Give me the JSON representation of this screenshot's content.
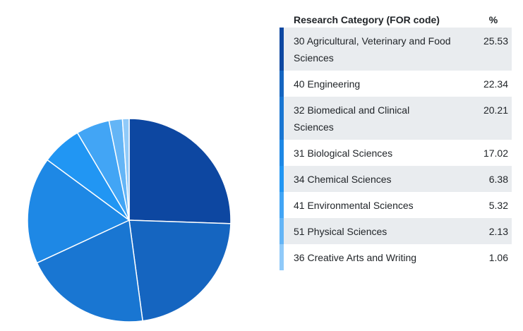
{
  "chart_data": {
    "type": "pie",
    "title": "",
    "start_angle": "top",
    "direction": "clockwise",
    "columns": [
      "Research Category (FOR code)",
      "%"
    ],
    "slices": [
      {
        "label": "30 Agricultural, Veterinary and Food Sciences",
        "value": 25.53,
        "color": "#0D47A1"
      },
      {
        "label": "40 Engineering",
        "value": 22.34,
        "color": "#1565C0"
      },
      {
        "label": "32 Biomedical and Clinical Sciences",
        "value": 20.21,
        "color": "#1976D2"
      },
      {
        "label": "31 Biological Sciences",
        "value": 17.02,
        "color": "#1E88E5"
      },
      {
        "label": "34 Chemical Sciences",
        "value": 6.38,
        "color": "#2196F3"
      },
      {
        "label": "41 Environmental Sciences",
        "value": 5.32,
        "color": "#42A5F5"
      },
      {
        "label": "51 Physical Sciences",
        "value": 2.13,
        "color": "#64B5F6"
      },
      {
        "label": "36 Creative Arts and Writing",
        "value": 1.06,
        "color": "#90CAF9"
      }
    ]
  }
}
